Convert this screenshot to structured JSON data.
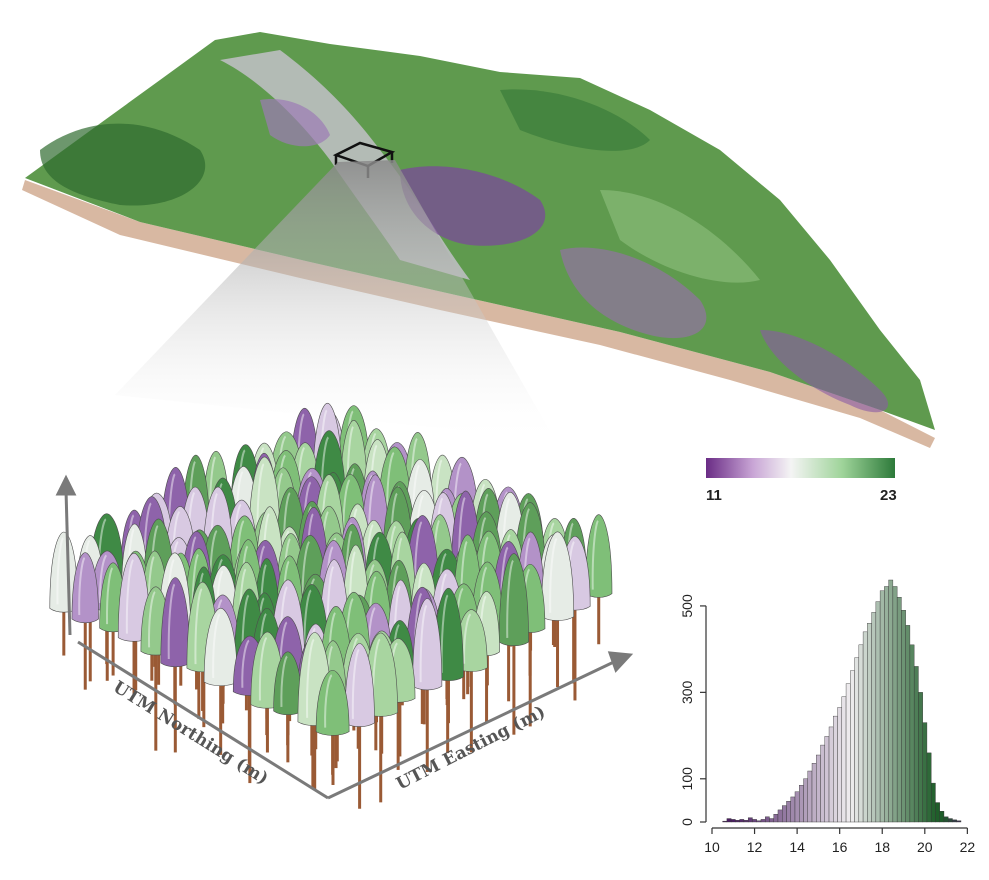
{
  "plot3d": {
    "x_axis_label": "UTM Easting (m)",
    "y_axis_label": "UTM Northing (m)"
  },
  "colorbar": {
    "min_label": "11",
    "max_label": "23",
    "colors": [
      "#6a2c85",
      "#c9a6d6",
      "#f4f4f4",
      "#9fd49a",
      "#2d7a3a"
    ]
  },
  "chart_data": {
    "type": "bar",
    "title": "",
    "xlabel": "",
    "ylabel": "",
    "xlim": [
      10,
      22.5
    ],
    "ylim": [
      0,
      560
    ],
    "x_ticks": [
      10,
      12,
      14,
      16,
      18,
      20,
      22
    ],
    "y_ticks": [
      0,
      100,
      300,
      500
    ],
    "bin_start": 10.5,
    "bin_width": 0.2,
    "values": [
      2,
      8,
      6,
      4,
      6,
      4,
      10,
      6,
      3,
      6,
      12,
      8,
      18,
      28,
      38,
      48,
      58,
      70,
      85,
      100,
      118,
      136,
      155,
      178,
      198,
      220,
      245,
      265,
      290,
      320,
      350,
      380,
      410,
      440,
      460,
      485,
      510,
      535,
      545,
      560,
      545,
      520,
      490,
      455,
      410,
      360,
      300,
      230,
      160,
      90,
      45,
      25,
      12,
      8,
      5,
      3
    ],
    "colors": {
      "low": "#4b1e63",
      "mid": "#f0eef0",
      "high": "#1f5e2a"
    }
  }
}
